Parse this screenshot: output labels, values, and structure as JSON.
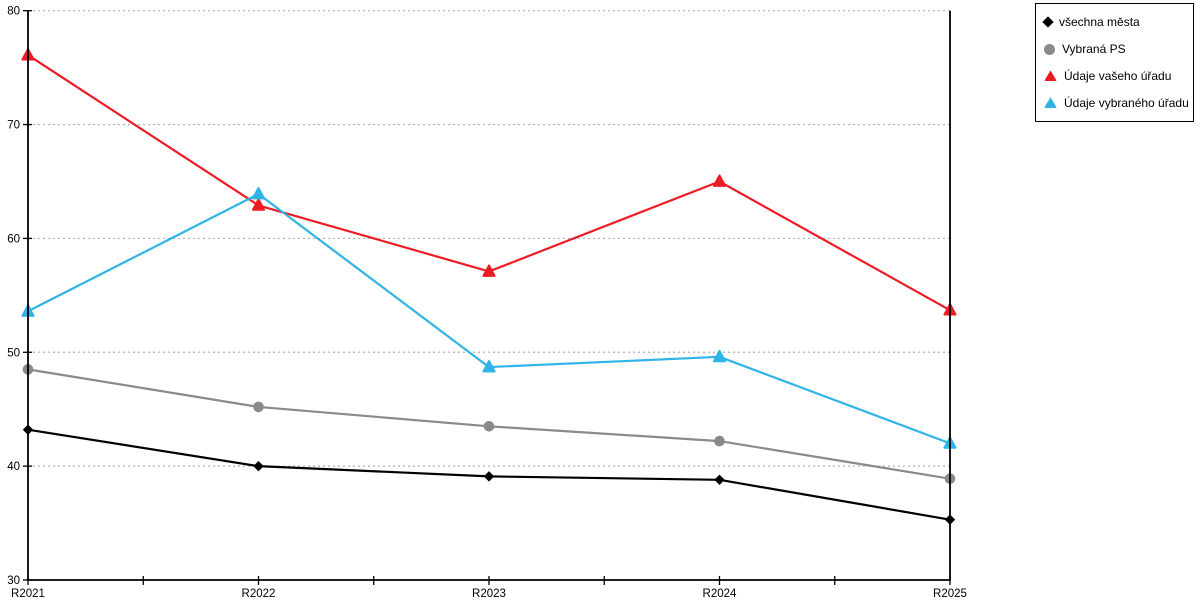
{
  "chart_data": {
    "type": "line",
    "title": "",
    "xlabel": "",
    "ylabel": "",
    "categories": [
      "R2021",
      "R2022",
      "R2023",
      "R2024",
      "R2025"
    ],
    "series": [
      {
        "name": "všechna města",
        "color": "#000000",
        "marker": "diamond",
        "values": [
          43.2,
          40.0,
          39.1,
          38.8,
          35.3
        ]
      },
      {
        "name": "Vybraná PS",
        "color": "#8a8a8a",
        "marker": "circle",
        "values": [
          48.5,
          45.2,
          43.5,
          42.2,
          38.9
        ]
      },
      {
        "name": "Údaje vašeho úřadu",
        "color": "#ed1c24",
        "marker": "triangle",
        "values": [
          76.1,
          62.9,
          57.1,
          65.0,
          53.7
        ]
      },
      {
        "name": "Údaje vybraného úřadu",
        "color": "#30b4e8",
        "marker": "triangle",
        "values": [
          53.6,
          63.9,
          48.7,
          49.6,
          42.0
        ]
      }
    ],
    "ylim": [
      30,
      80
    ],
    "yticks": [
      30,
      40,
      50,
      60,
      70,
      80
    ],
    "grid": "horizontal-dotted",
    "grid_color": "#b0b0b0",
    "axis_color": "#000000",
    "legend_position": "top-right"
  }
}
